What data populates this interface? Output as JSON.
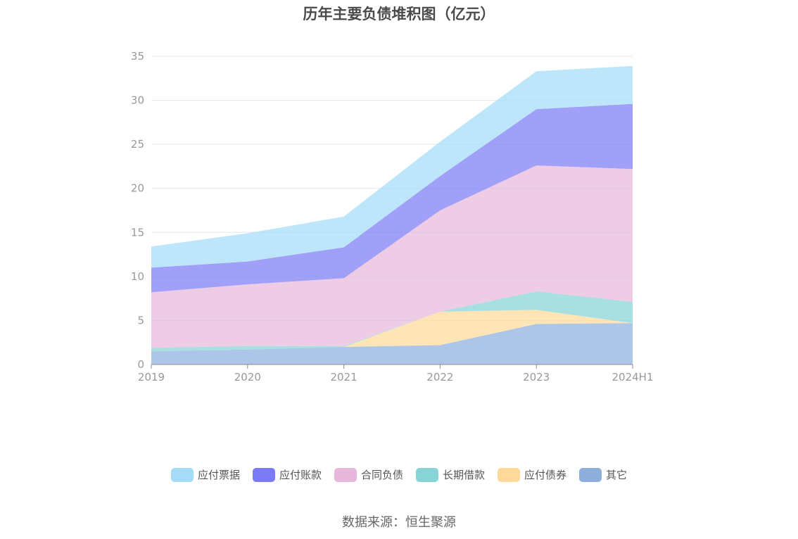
{
  "title": "历年主要负债堆积图（亿元）",
  "source": "数据来源：恒生聚源",
  "chart_data": {
    "type": "area",
    "stacked": true,
    "categories": [
      "2019",
      "2020",
      "2021",
      "2022",
      "2023",
      "2024H1"
    ],
    "ylim": [
      0,
      35
    ],
    "yticks": [
      0,
      5,
      10,
      15,
      20,
      25,
      30,
      35
    ],
    "grid": true,
    "legend_position": "bottom",
    "series": [
      {
        "name": "其它",
        "color": "#8eaedc",
        "values": [
          1.5,
          1.7,
          2.0,
          2.2,
          4.6,
          4.7
        ]
      },
      {
        "name": "应付债券",
        "color": "#ffd99a",
        "values": [
          0.0,
          0.0,
          0.0,
          3.8,
          1.6,
          0.0
        ]
      },
      {
        "name": "长期借款",
        "color": "#86d4d6",
        "values": [
          0.4,
          0.4,
          0.1,
          0.0,
          2.1,
          2.4
        ]
      },
      {
        "name": "合同负债",
        "color": "#e8b8dc",
        "values": [
          6.3,
          7.0,
          7.7,
          11.5,
          14.3,
          15.1
        ]
      },
      {
        "name": "应付账款",
        "color": "#7b7cf5",
        "values": [
          2.8,
          2.6,
          3.5,
          3.9,
          6.4,
          7.4
        ]
      },
      {
        "name": "应付票据",
        "color": "#a4dcf8",
        "values": [
          2.4,
          3.2,
          3.5,
          3.9,
          4.3,
          4.3
        ]
      }
    ],
    "legend_order": [
      "应付票据",
      "应付账款",
      "合同负债",
      "长期借款",
      "应付债券",
      "其它"
    ]
  }
}
